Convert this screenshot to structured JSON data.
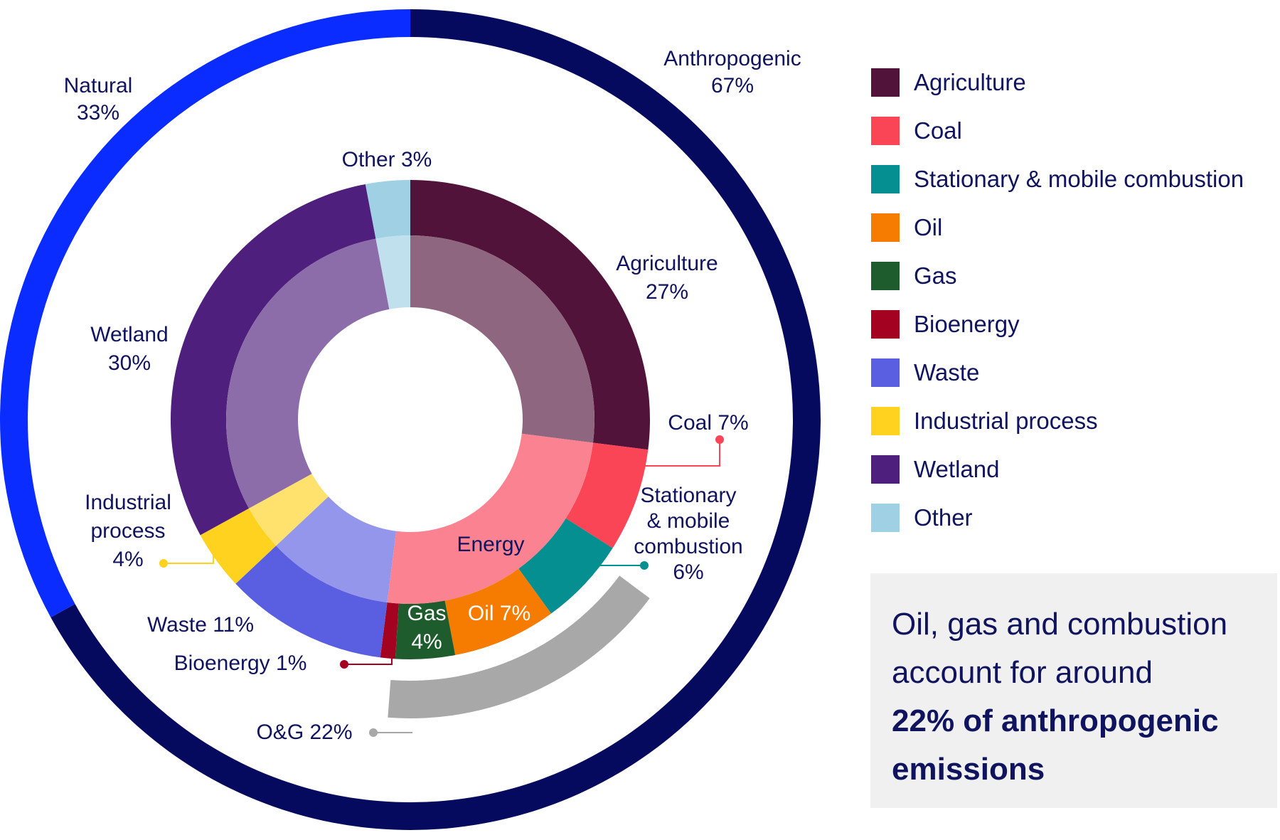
{
  "chart_data": {
    "type": "pie",
    "rings": {
      "outer": [
        {
          "name": "Natural",
          "value": 33,
          "color": "#0a2cff",
          "label_lines": [
            "Natural",
            "33%"
          ]
        },
        {
          "name": "Anthropogenic",
          "value": 67,
          "color": "#060a5e",
          "label_lines": [
            "Anthropogenic",
            "67%"
          ]
        }
      ],
      "inner": [
        {
          "name": "Agriculture",
          "value": 27,
          "color": "#52133a",
          "label_lines": [
            "Agriculture",
            "27%"
          ]
        },
        {
          "name": "Coal",
          "value": 7,
          "color": "#f94555",
          "label_lines": [
            "Coal 7%"
          ]
        },
        {
          "name": "Stationary & mobile combustion",
          "value": 6,
          "color": "#068f91",
          "label_lines": [
            "Stationary",
            "& mobile",
            "combustion",
            "6%"
          ]
        },
        {
          "name": "Oil",
          "value": 7,
          "color": "#f57c00",
          "label_lines": [
            "Oil 7%"
          ]
        },
        {
          "name": "Gas",
          "value": 4,
          "color": "#1e5c2e",
          "label_lines": [
            "Gas",
            "4%"
          ]
        },
        {
          "name": "Bioenergy",
          "value": 1,
          "color": "#a30220",
          "label_lines": [
            "Bioenergy 1%"
          ]
        },
        {
          "name": "Waste",
          "value": 11,
          "color": "#5a5ee0",
          "label_lines": [
            "Waste 11%"
          ]
        },
        {
          "name": "Industrial process",
          "value": 4,
          "color": "#ffd21f",
          "label_lines": [
            "Industrial",
            "process",
            "4%"
          ]
        },
        {
          "name": "Wetland",
          "value": 30,
          "color": "#4e1f7c",
          "label_lines": [
            "Wetland",
            "30%"
          ]
        },
        {
          "name": "Other",
          "value": 3,
          "color": "#9fd0e3",
          "label_lines": [
            "Other 3%"
          ]
        }
      ],
      "center_group": {
        "name": "Energy",
        "color": "#fb8290"
      },
      "highlight": {
        "label": "O&G 22%",
        "value": 22,
        "color": "#a8a8a8"
      }
    },
    "legend": [
      {
        "label": "Agriculture",
        "color": "#52133a"
      },
      {
        "label": "Coal",
        "color": "#f94555"
      },
      {
        "label": "Stationary & mobile combustion",
        "color": "#068f91"
      },
      {
        "label": "Oil",
        "color": "#f57c00"
      },
      {
        "label": "Gas",
        "color": "#1e5c2e"
      },
      {
        "label": "Bioenergy",
        "color": "#a30220"
      },
      {
        "label": "Waste",
        "color": "#5a5ee0"
      },
      {
        "label": "Industrial process",
        "color": "#ffd21f"
      },
      {
        "label": "Wetland",
        "color": "#4e1f7c"
      },
      {
        "label": "Other",
        "color": "#9fd0e3"
      }
    ],
    "legend_placement": "right"
  },
  "callout": {
    "line1": "Oil, gas and combustion",
    "line2": "account for around",
    "line3": "22% of anthropogenic",
    "line4": "emissions"
  }
}
